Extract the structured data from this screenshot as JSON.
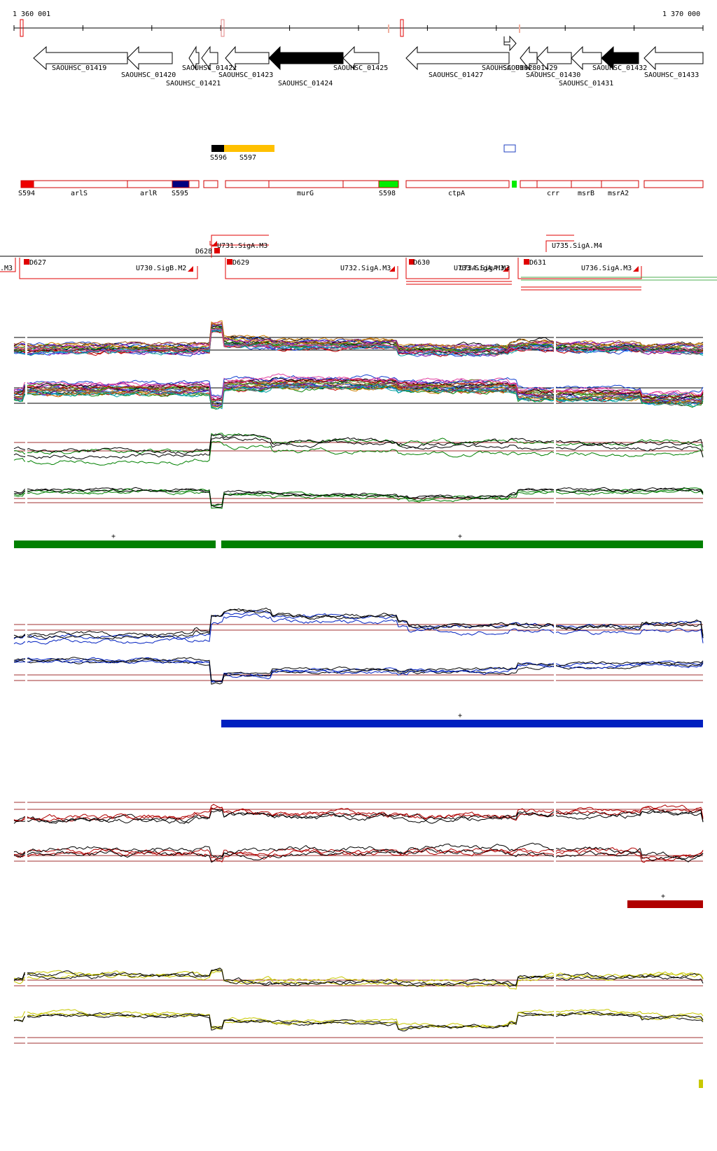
{
  "ruler": {
    "start_label": "1 360 001",
    "end_label": "1 370 000"
  },
  "genes": [
    {
      "label": "SAOUHSC_01419",
      "fill": "#ffffff"
    },
    {
      "label": "SAOUHSC_01420",
      "fill": "#ffffff"
    },
    {
      "label": "SAOUHSC_01421",
      "fill": "#ffffff"
    },
    {
      "label": "SAOUHSC_01422",
      "fill": "#ffffff"
    },
    {
      "label": "SAOUHSC_01423",
      "fill": "#ffffff"
    },
    {
      "label": "SAOUHSC_01424",
      "fill": "#000000"
    },
    {
      "label": "SAOUHSC_01425",
      "fill": "#ffffff"
    },
    {
      "label": "SAOUHSC_01427",
      "fill": "#ffffff"
    },
    {
      "label": "SAOUHSC_01428",
      "fill": "#ffffff"
    },
    {
      "label": "SAOUHSC_01429",
      "fill": "#ffffff"
    },
    {
      "label": "SAOUHSC_01430",
      "fill": "#ffffff"
    },
    {
      "label": "SAOUHSC_01431",
      "fill": "#ffffff"
    },
    {
      "label": "SAOUHSC_01432",
      "fill": "#000000"
    },
    {
      "label": "SAOUHSC_01433",
      "fill": "#ffffff"
    }
  ],
  "small_features": [
    {
      "label": "S596",
      "color": "#000000"
    },
    {
      "label": "S597",
      "color": "#ffc000"
    }
  ],
  "segments": [
    {
      "label": "S594",
      "color": "#ee0000"
    },
    {
      "label": "arlS",
      "color": "#ffffff"
    },
    {
      "label": "arlR",
      "color": "#ffffff"
    },
    {
      "label": "S595",
      "color": "#000080"
    },
    {
      "label": "murG",
      "color": "#ffffff"
    },
    {
      "label": "S598",
      "color": "#00ee00"
    },
    {
      "label": "ctpA",
      "color": "#ffffff"
    },
    {
      "label": "crr",
      "color": "#ffffff"
    },
    {
      "label": "msrB",
      "color": "#ffffff"
    },
    {
      "label": "msrA2",
      "color": "#ffffff"
    }
  ],
  "operons": [
    {
      "label": ".M3"
    },
    {
      "label": "D627"
    },
    {
      "label": "U730.SigB.M2"
    },
    {
      "label": "D628"
    },
    {
      "label": "U731.SigA.M3"
    },
    {
      "label": "D629"
    },
    {
      "label": "U732.SigA.M3"
    },
    {
      "label": "D630"
    },
    {
      "label": "U733.SigA.M3"
    },
    {
      "label": "U734.SigA.M3"
    },
    {
      "label": "D631"
    },
    {
      "label": "U735.SigA.M4"
    },
    {
      "label": "U736.SigA.M3"
    }
  ],
  "tracks": [
    {
      "color": "#008000",
      "strand_marks": [
        "+",
        "+"
      ]
    },
    {
      "color": "#0020c0",
      "strand_marks": [
        "+"
      ]
    },
    {
      "color": "#b00000",
      "strand_marks": [
        "+"
      ]
    },
    {
      "color": "#c8c800",
      "strand_marks": []
    }
  ]
}
